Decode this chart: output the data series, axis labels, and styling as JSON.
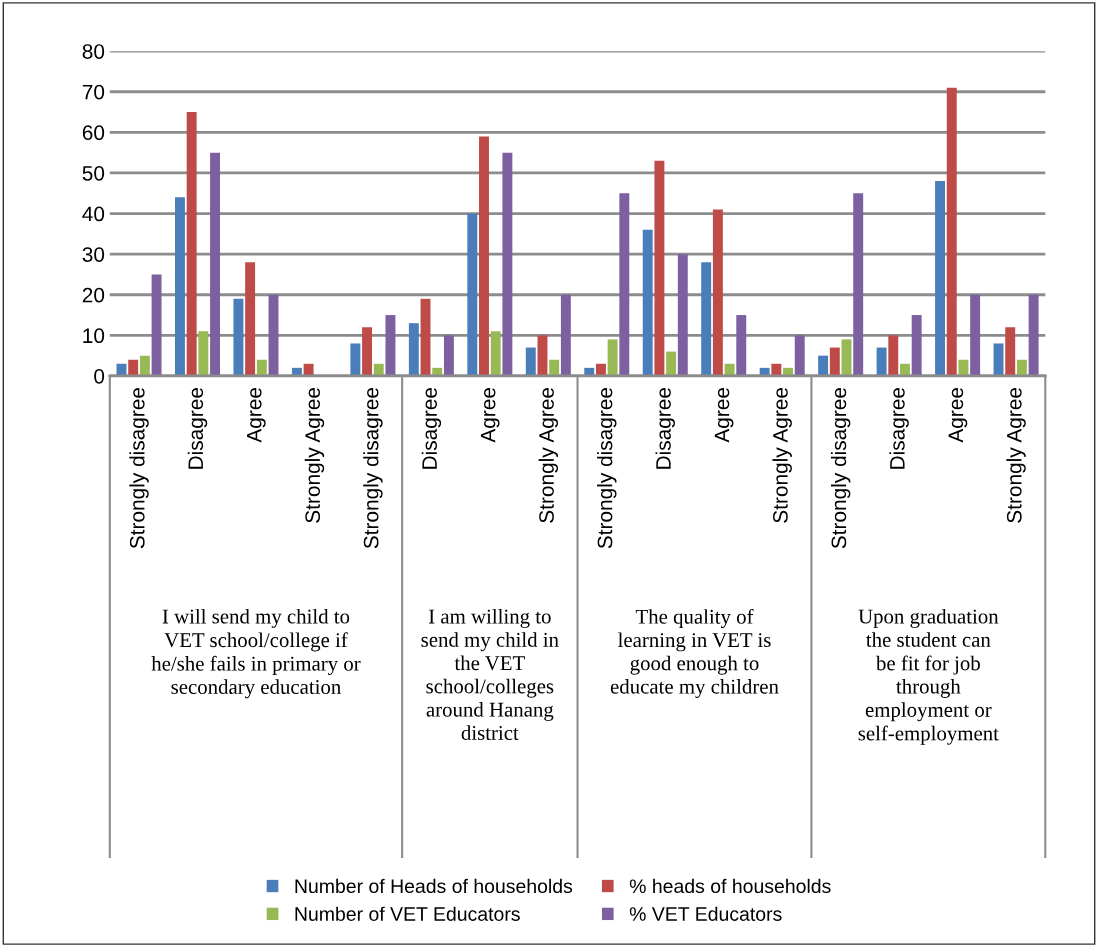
{
  "chart_data": {
    "type": "bar",
    "categories": [
      "Strongly disagree",
      "Disagree",
      "Agree",
      "Strongly Agree",
      "Strongly disagree",
      "Disagree",
      "Agree",
      "Strongly Agree",
      "Strongly disagree",
      "Disagree",
      "Agree",
      "Strongly Agree",
      "Strongly disagree",
      "Disagree",
      "Agree",
      "Strongly Agree"
    ],
    "series": [
      {
        "name": "Number of Heads of households",
        "color": "#4a7ebb",
        "values": [
          3,
          44,
          19,
          2,
          8,
          13,
          40,
          7,
          2,
          36,
          28,
          2,
          5,
          7,
          48,
          8
        ]
      },
      {
        "name": "% heads of households",
        "color": "#be4b48",
        "values": [
          4,
          65,
          28,
          3,
          12,
          19,
          59,
          10,
          3,
          53,
          41,
          3,
          7,
          10,
          71,
          12
        ]
      },
      {
        "name": "Number of VET Educators",
        "color": "#98b954",
        "values": [
          5,
          11,
          4,
          0,
          3,
          2,
          11,
          4,
          9,
          6,
          3,
          2,
          9,
          3,
          4,
          4
        ]
      },
      {
        "name": "% VET Educators",
        "color": "#7d60a0",
        "values": [
          25,
          55,
          20,
          0,
          15,
          10,
          55,
          20,
          45,
          30,
          15,
          10,
          45,
          15,
          20,
          20
        ]
      }
    ],
    "annotations": [
      "I will send my child to\nVET school/college if\nhe/she fails in primary or\nsecondary education",
      "I am willing to\nsend my child in\nthe VET\nschool/colleges\naround Hanang\ndistrict",
      "The quality of\nlearning in VET is\ngood enough to\neducate my children",
      "Upon graduation\nthe student can\nbe fit for job\nthrough\nemployment or\nself-employment"
    ],
    "ylim": [
      0,
      80
    ],
    "yticks": [
      0,
      10,
      20,
      30,
      40,
      50,
      60,
      70,
      80
    ],
    "grid": "y",
    "legend": "bottom"
  }
}
